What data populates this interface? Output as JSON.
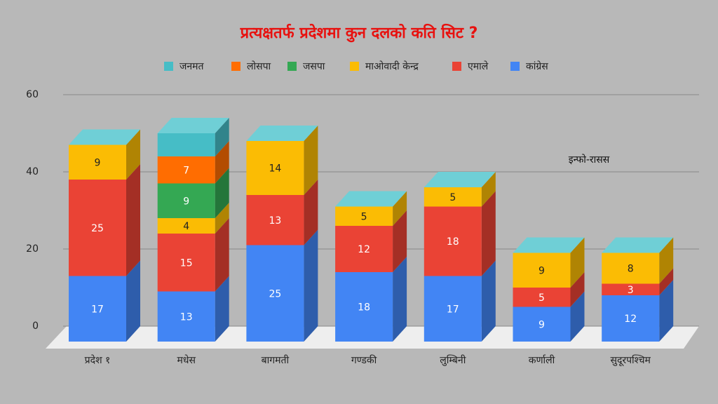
{
  "chart_data": {
    "type": "bar3d_stacked",
    "title": "प्रत्यक्षतर्फ प्रदेशमा कुन दलको कति सिट ?",
    "annotation": "इन्फो-रासस",
    "categories": [
      "प्रदेश १",
      "मधेस",
      "बागमती",
      "गण्डकी",
      "लुम्बिनी",
      "कर्णाली",
      "सुदूरपश्चिम"
    ],
    "series": [
      {
        "name": "जनमत",
        "color": "#46bdc6",
        "values": [
          null,
          6,
          null,
          null,
          null,
          null,
          null
        ],
        "value_labels": [
          null,
          null,
          null,
          null,
          null,
          null,
          null
        ]
      },
      {
        "name": "लोसपा",
        "color": "#ff6d01",
        "values": [
          null,
          7,
          null,
          null,
          null,
          null,
          null
        ],
        "value_labels": [
          null,
          "7",
          null,
          null,
          null,
          null,
          null
        ]
      },
      {
        "name": "जसपा",
        "color": "#34a853",
        "values": [
          null,
          9,
          null,
          null,
          null,
          null,
          null
        ],
        "value_labels": [
          null,
          "9",
          null,
          null,
          null,
          null,
          null
        ]
      },
      {
        "name": "माओवादी केन्द्र",
        "color": "#fbbc04",
        "values": [
          9,
          4,
          14,
          5,
          5,
          9,
          8
        ],
        "value_labels": [
          "9",
          "4",
          "14",
          "5",
          "5",
          "9",
          "8"
        ]
      },
      {
        "name": "एमाले",
        "color": "#ea4335",
        "values": [
          25,
          15,
          13,
          12,
          18,
          5,
          3
        ],
        "value_labels": [
          "25",
          "15",
          "13",
          "12",
          "18",
          "5",
          "3"
        ]
      },
      {
        "name": "कांग्रेस",
        "color": "#4285f4",
        "values": [
          17,
          13,
          25,
          18,
          17,
          9,
          12
        ],
        "value_labels": [
          "17",
          "13",
          "25",
          "18",
          "17",
          "9",
          "12"
        ]
      }
    ],
    "ylim": [
      0,
      60
    ],
    "yticks": [
      0,
      20,
      40,
      60
    ],
    "grid": true,
    "cap_color": "#6fcfd6"
  }
}
